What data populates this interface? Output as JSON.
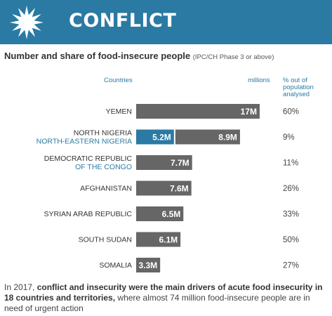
{
  "banner": {
    "title": "CONFLICT",
    "icon": "burst-icon",
    "color": "#2a7aa3"
  },
  "subtitle": {
    "main": "Number and share of food-insecure people",
    "note": "(IPC/CH Phase 3 or above)"
  },
  "columns": {
    "countries": "Countries",
    "millions": "millions",
    "pct_lines": [
      "% out of",
      "population",
      "analysed"
    ]
  },
  "chart_data": {
    "type": "bar",
    "orientation": "horizontal",
    "unit": "millions",
    "categories": [
      [
        "YEMEN"
      ],
      [
        "NORTH NIGERIA",
        "NORTH-EASTERN NIGERIA"
      ],
      [
        "DEMOCRATIC REPUBLIC",
        "OF THE CONGO"
      ],
      [
        "AFGHANISTAN"
      ],
      [
        "SYRIAN ARAB REPUBLIC"
      ],
      [
        "SOUTH SUDAN"
      ],
      [
        "SOMALIA"
      ]
    ],
    "series": [
      {
        "values": [
          null,
          5.2,
          null,
          null,
          null,
          null,
          null
        ],
        "color": "#2a7aa3",
        "labels": [
          "",
          "5.2M",
          "",
          "",
          "",
          "",
          ""
        ]
      },
      {
        "values": [
          17,
          8.9,
          7.7,
          7.6,
          6.5,
          6.1,
          3.3
        ],
        "color": "#666666",
        "labels": [
          "17M",
          "8.9M",
          "7.7M",
          "7.6M",
          "6.5M",
          "6.1M",
          "3.3M"
        ]
      }
    ],
    "percent_labels": [
      "60%",
      "9%",
      "11%",
      "26%",
      "33%",
      "50%",
      "27%"
    ],
    "label_colors": [
      "#333333",
      "#2a7aa3"
    ]
  },
  "footer": {
    "part1": "In 2017, ",
    "bold1": "conflict and insecurity were the main drivers of acute food insecurity in 18 countries and territories,",
    "part2": " where almost 74 million food-insecure people are in need of urgent action"
  }
}
